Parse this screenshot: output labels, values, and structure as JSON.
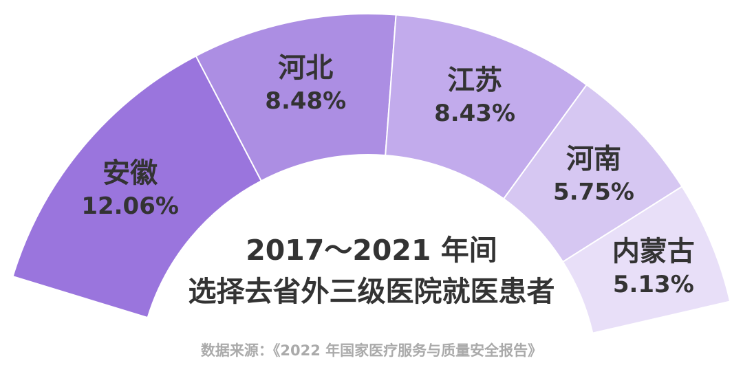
{
  "chart_data": {
    "type": "pie",
    "title_line1": "2017～2021 年间",
    "title_line2": "选择去省外三级医院就医患者",
    "slices": [
      {
        "label": "安徽",
        "value": 12.06,
        "value_label": "12.06%",
        "color": "#9a75dd"
      },
      {
        "label": "河北",
        "value": 8.48,
        "value_label": "8.48%",
        "color": "#ac8ee3"
      },
      {
        "label": "江苏",
        "value": 8.43,
        "value_label": "8.43%",
        "color": "#c2abec"
      },
      {
        "label": "河南",
        "value": 5.75,
        "value_label": "5.75%",
        "color": "#d6c7f2"
      },
      {
        "label": "内蒙古",
        "value": 5.13,
        "value_label": "5.13%",
        "color": "#e8dff8"
      }
    ]
  },
  "source": "数据来源：《2022 年国家医疗服务与质量安全报告》"
}
